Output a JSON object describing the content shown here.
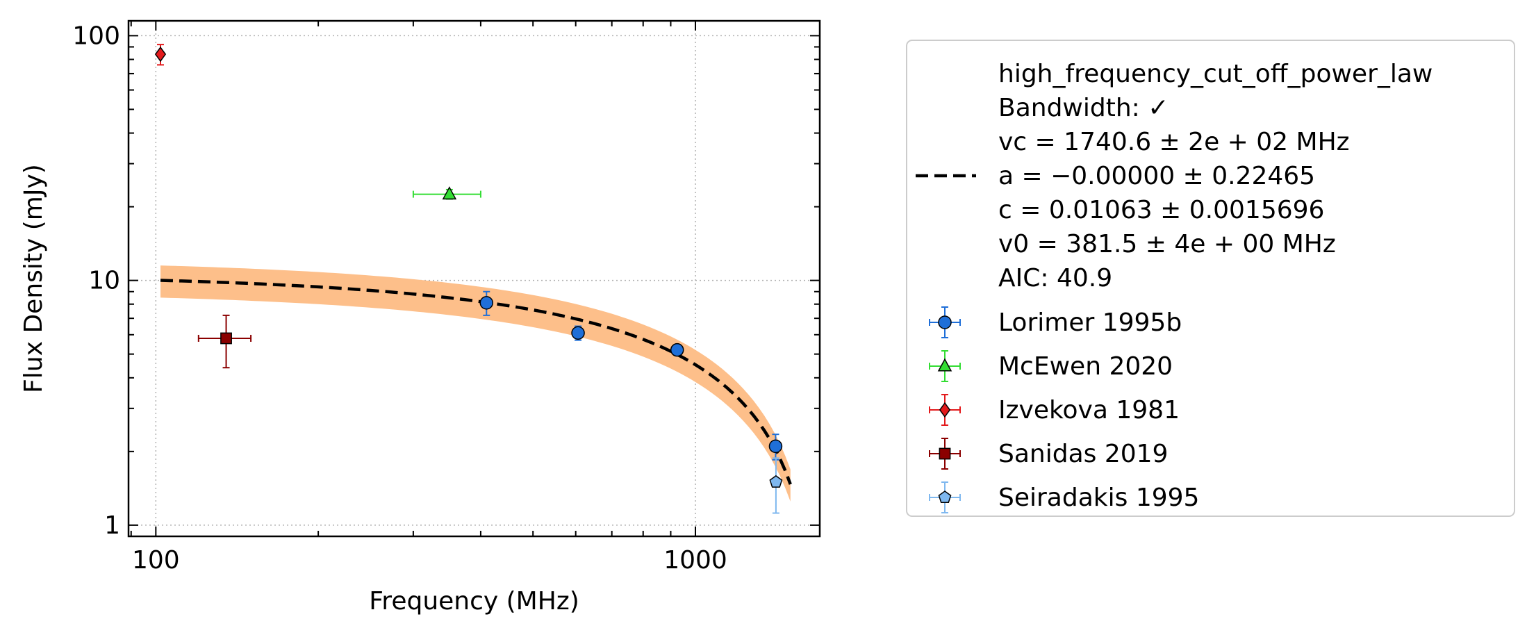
{
  "chart_data": {
    "type": "scatter",
    "title": "",
    "xlabel": "Frequency (MHz)",
    "ylabel": "Flux Density (mJy)",
    "xscale": "log",
    "yscale": "log",
    "xlim": [
      89,
      1700
    ],
    "ylim": [
      0.9,
      115
    ],
    "xticks": [
      100,
      1000
    ],
    "xtick_labels": [
      "100",
      "1000"
    ],
    "yticks": [
      1,
      10,
      100
    ],
    "ytick_labels": [
      "1",
      "10",
      "100"
    ],
    "grid": true,
    "legend_position": "outside-right",
    "fit": {
      "model": "high_frequency_cut_off_power_law",
      "legend_lines": [
        "high_frequency_cut_off_power_law",
        "Bandwidth: ✓",
        "vc = 1740.6 ± 2e + 02 MHz",
        "a = −0.00000 ± 0.22465",
        "c = 0.01063 ± 0.0015696",
        "v0 = 381.5 ± 4e + 00 MHz",
        "AIC: 40.9"
      ],
      "params": {
        "vc": 1740.6,
        "a": 0.0,
        "c": 0.01063,
        "v0": 381.5
      },
      "x_range": [
        102,
        1500
      ],
      "line_color": "#000000",
      "band_color": "#fdbf8a"
    },
    "series": [
      {
        "name": "Lorimer 1995b",
        "marker": "circle",
        "color": "#1f6fd8",
        "points": [
          {
            "x": 410,
            "y": 8.1,
            "yerr": [
              0.9,
              0.9
            ]
          },
          {
            "x": 606,
            "y": 6.1,
            "yerr": [
              0.4,
              0.4
            ]
          },
          {
            "x": 925,
            "y": 5.2,
            "yerr": [
              0.2,
              0.2
            ]
          },
          {
            "x": 1408,
            "y": 2.1,
            "yerr": [
              0.25,
              0.25
            ]
          }
        ]
      },
      {
        "name": "McEwen 2020",
        "marker": "triangle",
        "color": "#33dd33",
        "points": [
          {
            "x": 350,
            "y": 22.5,
            "xerr": [
              50,
              50
            ],
            "yerr": [
              1.0,
              1.0
            ]
          }
        ]
      },
      {
        "name": "Izvekova 1981",
        "marker": "diamond",
        "color": "#e31a1c",
        "points": [
          {
            "x": 102,
            "y": 84,
            "yerr": [
              8,
              8
            ]
          }
        ]
      },
      {
        "name": "Sanidas 2019",
        "marker": "square",
        "color": "#8b0000",
        "points": [
          {
            "x": 135,
            "y": 5.8,
            "xerr": [
              15,
              15
            ],
            "yerr": [
              1.4,
              1.4
            ]
          }
        ]
      },
      {
        "name": "Seiradakis 1995",
        "marker": "pentagon",
        "color": "#7fb8ef",
        "points": [
          {
            "x": 1410,
            "y": 1.5,
            "yerr": [
              0.38,
              0.38
            ]
          }
        ]
      }
    ]
  }
}
